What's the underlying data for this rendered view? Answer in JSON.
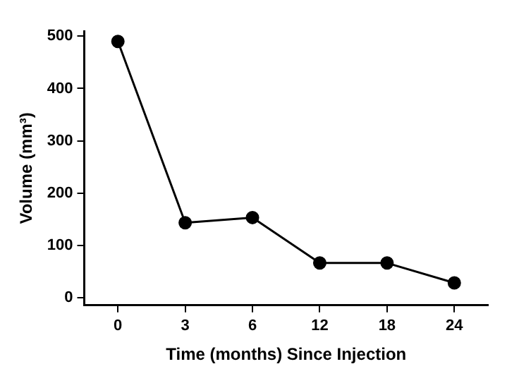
{
  "chart_data": {
    "type": "line",
    "xlabel": "Time (months) Since Injection",
    "ylabel": "Volume (mm³)",
    "categories": [
      "0",
      "3",
      "6",
      "12",
      "18",
      "24"
    ],
    "series": [
      {
        "color": "#000000",
        "values": [
          490,
          143,
          153,
          66,
          66,
          28
        ]
      }
    ],
    "ylim": [
      -15,
      510
    ],
    "yticks": [
      0,
      100,
      200,
      300,
      400,
      500
    ],
    "grid": false,
    "legend": false,
    "marker": "circle",
    "line_style": "solid"
  }
}
